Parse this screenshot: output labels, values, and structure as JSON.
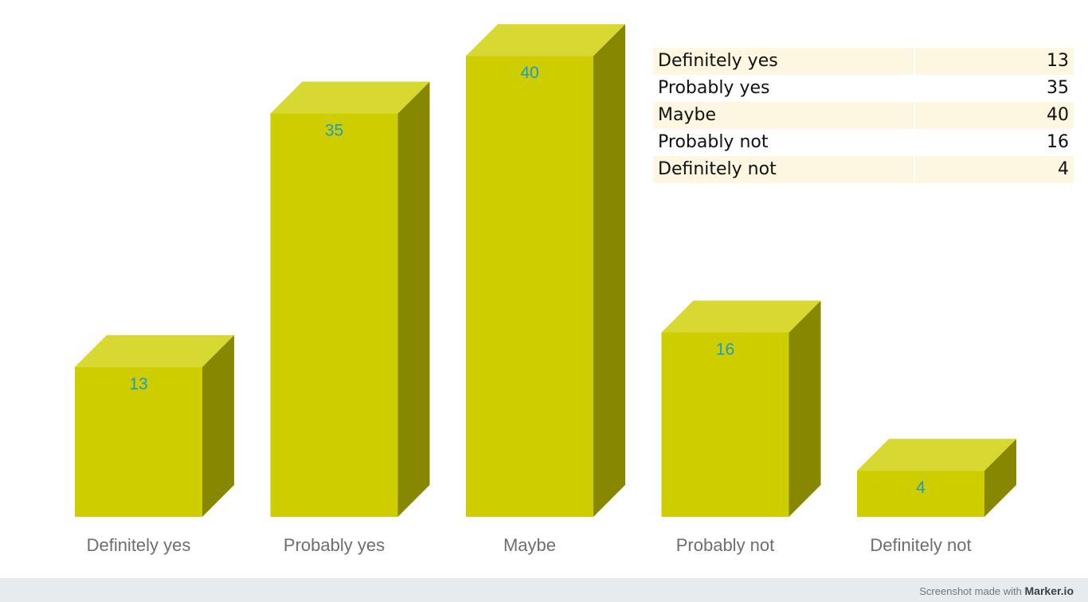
{
  "chart_data": {
    "type": "bar",
    "categories": [
      "Definitely yes",
      "Probably yes",
      "Maybe",
      "Probably not",
      "Definitely not"
    ],
    "values": [
      13,
      35,
      40,
      16,
      4
    ],
    "title": "",
    "xlabel": "",
    "ylabel": "",
    "ylim": [
      0,
      40
    ],
    "grid": false,
    "legend": "none",
    "style": "3d-column",
    "colors": {
      "front": "#cdcd00",
      "top": "#d8d832",
      "side": "#888800",
      "value_label": "#1e9dc4",
      "category_label": "#6e6e6e"
    }
  },
  "table": {
    "rows": [
      {
        "label": "Definitely yes",
        "value": "13"
      },
      {
        "label": "Probably yes",
        "value": "35"
      },
      {
        "label": "Maybe",
        "value": "40"
      },
      {
        "label": "Probably not",
        "value": "16"
      },
      {
        "label": "Definitely not",
        "value": "4"
      }
    ]
  },
  "footer": {
    "prefix": "Screenshot made with",
    "brand": "Marker.io"
  }
}
